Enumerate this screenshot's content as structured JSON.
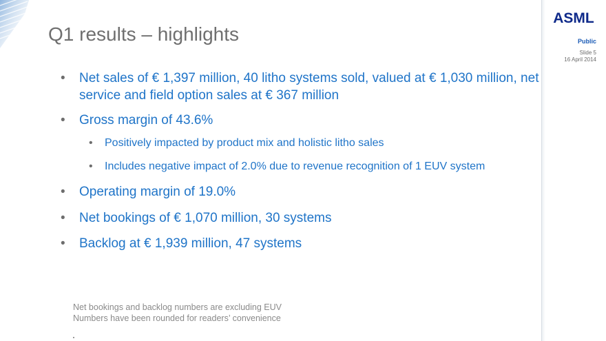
{
  "slide": {
    "title": "Q1 results – highlights",
    "classification": "Public",
    "slide_number": "Slide 5",
    "date": "16 April 2014"
  },
  "brand": {
    "name": "ASML",
    "color": "#0f2a8a",
    "accent": "#1f74c8"
  },
  "bullets": [
    {
      "text": "Net sales of € 1,397 million, 40 litho systems sold, valued at  € 1,030 million, net service and field option sales at € 367 million",
      "sub": []
    },
    {
      "text": "Gross margin of 43.6%",
      "sub": [
        "Positively impacted by product mix and holistic litho sales",
        "Includes negative impact of 2.0% due to revenue recognition of 1 EUV system"
      ]
    },
    {
      "text": "Operating margin of 19.0%",
      "sub": []
    },
    {
      "text": "Net bookings of € 1,070 million, 30 systems",
      "sub": []
    },
    {
      "text": "Backlog at € 1,939 million, 47 systems",
      "sub": []
    }
  ],
  "notes": [
    "Net bookings and backlog numbers are excluding EUV",
    "Numbers have been rounded for readers’ convenience"
  ]
}
